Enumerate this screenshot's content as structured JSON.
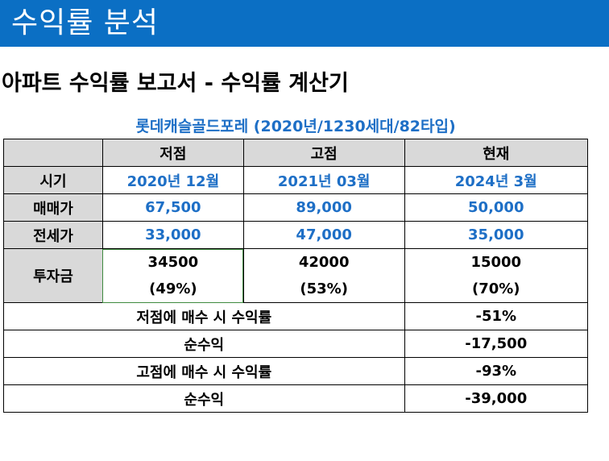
{
  "header": {
    "title": "수익률 분석"
  },
  "report": {
    "title": "아파트 수익률 보고서 - 수익률 계산기",
    "subtitle": "롯데캐슬골드포레 (2020년/1230세대/82타입)"
  },
  "table": {
    "columns": [
      "",
      "저점",
      "고점",
      "현재"
    ],
    "rows": {
      "period": {
        "label": "시기",
        "values": [
          "2020년 12월",
          "2021년 03월",
          "2024년 3월"
        ]
      },
      "sale_price": {
        "label": "매매가",
        "values": [
          "67,500",
          "89,000",
          "50,000"
        ]
      },
      "jeonse_price": {
        "label": "전세가",
        "values": [
          "33,000",
          "47,000",
          "35,000"
        ]
      },
      "investment": {
        "label": "투자금",
        "amounts": [
          "34500",
          "42000",
          "15000"
        ],
        "ratios": [
          "(49%)",
          "(53%)",
          "(70%)"
        ]
      }
    },
    "summary": [
      {
        "label": "저점에 매수 시 수익률",
        "value": "-51%"
      },
      {
        "label": "순수익",
        "value": "-17,500"
      },
      {
        "label": "고점에 매수 시 수익률",
        "value": "-93%"
      },
      {
        "label": "순수익",
        "value": "-39,000"
      }
    ]
  },
  "colors": {
    "header_bg": "#0b6fc4",
    "accent_blue": "#1e6fc6",
    "label_gray": "#d9d9d9"
  }
}
